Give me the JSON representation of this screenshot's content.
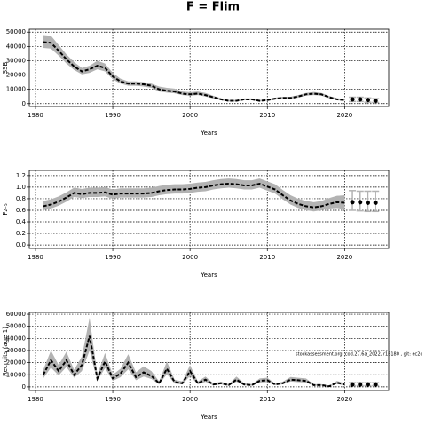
{
  "title": "F = Flim",
  "chart_data": [
    {
      "type": "line",
      "ylabel": "SSB",
      "xlabel": "Years",
      "x": [
        1981,
        1982,
        1983,
        1984,
        1985,
        1986,
        1987,
        1988,
        1989,
        1990,
        1991,
        1992,
        1993,
        1994,
        1995,
        1996,
        1997,
        1998,
        1999,
        2000,
        2001,
        2002,
        2003,
        2004,
        2005,
        2006,
        2007,
        2008,
        2009,
        2010,
        2011,
        2012,
        2013,
        2014,
        2015,
        2016,
        2017,
        2018,
        2019,
        2020
      ],
      "values": [
        43000,
        42500,
        37000,
        31000,
        26000,
        22500,
        24000,
        26500,
        25000,
        19000,
        15500,
        14000,
        14000,
        13500,
        12500,
        10000,
        9000,
        8500,
        7000,
        6500,
        7000,
        6000,
        4500,
        3000,
        2000,
        2000,
        3000,
        3000,
        2000,
        2500,
        3500,
        4000,
        4000,
        5000,
        6500,
        7000,
        6500,
        4500,
        3000,
        2500
      ],
      "lower": [
        39000,
        38500,
        33500,
        28000,
        23500,
        20500,
        21500,
        24000,
        22500,
        17000,
        14000,
        12500,
        12500,
        12000,
        11000,
        8500,
        7700,
        7200,
        6000,
        5500,
        6000,
        5000,
        3700,
        2400,
        1500,
        1500,
        2400,
        2400,
        1500,
        2000,
        2900,
        3300,
        3300,
        4200,
        5600,
        6000,
        5600,
        3800,
        2400,
        2000
      ],
      "upper": [
        48000,
        47500,
        41000,
        34500,
        29000,
        25000,
        26500,
        30000,
        28000,
        21500,
        17500,
        15500,
        15500,
        15000,
        14000,
        12000,
        11000,
        10500,
        8500,
        8000,
        8500,
        7500,
        5500,
        3800,
        2600,
        2600,
        3700,
        3700,
        2600,
        3100,
        4200,
        4800,
        4800,
        6000,
        7500,
        8200,
        7500,
        5400,
        3800,
        3200
      ],
      "proj_x": [
        2021,
        2022,
        2023,
        2024
      ],
      "proj_values": [
        3000,
        3000,
        2500,
        2000
      ],
      "proj_lower": [
        1500,
        1500,
        1000,
        800
      ],
      "proj_upper": [
        4500,
        4500,
        4000,
        3500
      ],
      "xlim": [
        1979.2,
        2025.7
      ],
      "xticks": [
        1980,
        1990,
        2000,
        2010,
        2020
      ],
      "ylim": [
        -2000,
        52000
      ],
      "yticks": [
        0,
        10000,
        20000,
        30000,
        40000,
        50000
      ],
      "grid": true,
      "color": "#000000",
      "band_color": "#b3b3b3"
    },
    {
      "type": "line",
      "ylabel": "F₂₋₅",
      "xlabel": "Years",
      "x": [
        1981,
        1982,
        1983,
        1984,
        1985,
        1986,
        1987,
        1988,
        1989,
        1990,
        1991,
        1992,
        1993,
        1994,
        1995,
        1996,
        1997,
        1998,
        1999,
        2000,
        2001,
        2002,
        2003,
        2004,
        2005,
        2006,
        2007,
        2008,
        2009,
        2010,
        2011,
        2012,
        2013,
        2014,
        2015,
        2016,
        2017,
        2018,
        2019,
        2020
      ],
      "values": [
        0.67,
        0.7,
        0.75,
        0.82,
        0.9,
        0.88,
        0.9,
        0.9,
        0.91,
        0.87,
        0.89,
        0.89,
        0.89,
        0.89,
        0.9,
        0.93,
        0.95,
        0.96,
        0.96,
        0.97,
        0.99,
        1.0,
        1.03,
        1.05,
        1.06,
        1.05,
        1.03,
        1.03,
        1.06,
        1.01,
        0.96,
        0.86,
        0.77,
        0.71,
        0.67,
        0.65,
        0.67,
        0.71,
        0.74,
        0.73
      ],
      "lower": [
        0.6,
        0.63,
        0.68,
        0.75,
        0.83,
        0.81,
        0.83,
        0.83,
        0.84,
        0.8,
        0.82,
        0.82,
        0.82,
        0.82,
        0.83,
        0.86,
        0.88,
        0.89,
        0.89,
        0.9,
        0.92,
        0.93,
        0.96,
        0.98,
        0.99,
        0.98,
        0.96,
        0.96,
        0.99,
        0.94,
        0.89,
        0.79,
        0.7,
        0.64,
        0.6,
        0.58,
        0.6,
        0.63,
        0.64,
        0.62
      ],
      "upper": [
        0.76,
        0.79,
        0.84,
        0.91,
        0.99,
        0.97,
        0.99,
        0.99,
        1.0,
        0.96,
        0.98,
        0.98,
        0.98,
        0.98,
        0.99,
        1.02,
        1.04,
        1.05,
        1.05,
        1.06,
        1.08,
        1.09,
        1.12,
        1.14,
        1.15,
        1.14,
        1.12,
        1.12,
        1.15,
        1.1,
        1.05,
        0.95,
        0.86,
        0.8,
        0.76,
        0.74,
        0.76,
        0.81,
        0.85,
        0.86
      ],
      "proj_x": [
        2021,
        2022,
        2023,
        2024
      ],
      "proj_values": [
        0.74,
        0.74,
        0.73,
        0.73
      ],
      "proj_lower": [
        0.6,
        0.59,
        0.58,
        0.58
      ],
      "proj_upper": [
        0.94,
        0.93,
        0.93,
        0.93
      ],
      "xlim": [
        1979.2,
        2025.7
      ],
      "xticks": [
        1980,
        1990,
        2000,
        2010,
        2020
      ],
      "ylim": [
        -0.06,
        1.29
      ],
      "yticks": [
        {
          "value": 0,
          "label": "0.0"
        },
        0.2,
        0.4,
        0.6,
        0.8,
        {
          "value": 1,
          "label": "1.0"
        },
        1.2
      ],
      "grid": true,
      "color": "#000000",
      "band_color": "#b3b3b3"
    },
    {
      "type": "line",
      "ylabel": "Recruits (age 1)",
      "xlabel": "Years",
      "annotation": "stockassessment.org, cod.27.6a_2022, r16180 , git: ec2c",
      "x": [
        1981,
        1982,
        1983,
        1984,
        1985,
        1986,
        1987,
        1988,
        1989,
        1990,
        1991,
        1992,
        1993,
        1994,
        1995,
        1996,
        1997,
        1998,
        1999,
        2000,
        2001,
        2002,
        2003,
        2004,
        2005,
        2006,
        2007,
        2008,
        2009,
        2010,
        2011,
        2012,
        2013,
        2014,
        2015,
        2016,
        2017,
        2018,
        2019,
        2020
      ],
      "values": [
        10000,
        22000,
        13000,
        22000,
        10000,
        18000,
        42000,
        7000,
        21000,
        7000,
        11000,
        20000,
        8000,
        12000,
        9000,
        3000,
        15000,
        4000,
        3000,
        13000,
        3000,
        6000,
        2000,
        3000,
        1500,
        6000,
        2000,
        1500,
        5000,
        5500,
        2000,
        3000,
        6000,
        5500,
        5000,
        1500,
        1500,
        500,
        3500,
        2000
      ],
      "lower": [
        7000,
        16000,
        9500,
        16500,
        7500,
        13000,
        30000,
        5000,
        15500,
        5000,
        8000,
        14500,
        5500,
        8500,
        6500,
        2000,
        10500,
        2800,
        2000,
        9000,
        2000,
        4200,
        1300,
        2100,
        1000,
        4200,
        1300,
        1000,
        3600,
        4000,
        1400,
        2100,
        4400,
        4000,
        3600,
        1000,
        1000,
        300,
        2400,
        1200
      ],
      "upper": [
        14000,
        30000,
        18000,
        29000,
        14000,
        25000,
        57000,
        10000,
        28000,
        10000,
        15000,
        27000,
        12000,
        17000,
        13000,
        4500,
        21000,
        6000,
        4500,
        18000,
        4500,
        8500,
        3000,
        4300,
        2200,
        8500,
        3000,
        2200,
        7000,
        7500,
        2900,
        4300,
        8200,
        7500,
        7000,
        2200,
        2200,
        800,
        5000,
        3000
      ],
      "proj_x": [
        2021,
        2022,
        2023,
        2024
      ],
      "proj_values": [
        2000,
        2000,
        2000,
        2000
      ],
      "proj_lower": [
        1000,
        1000,
        1000,
        1000
      ],
      "proj_upper": [
        3500,
        3500,
        3500,
        3500
      ],
      "xlim": [
        1979.2,
        2025.7
      ],
      "xticks": [
        1980,
        1990,
        2000,
        2010,
        2020
      ],
      "ylim": [
        -3000,
        61500
      ],
      "yticks": [
        0,
        10000,
        20000,
        30000,
        40000,
        50000,
        60000
      ],
      "grid": true,
      "color": "#000000",
      "band_color": "#b3b3b3"
    }
  ]
}
